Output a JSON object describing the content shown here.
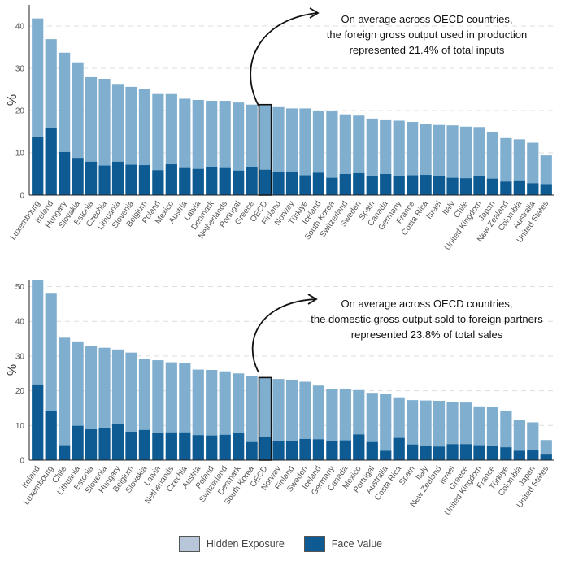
{
  "colors": {
    "hidden": "#7FAECF",
    "face": "#0E5B93",
    "grid": "#dddddd",
    "axis": "#222222"
  },
  "legend": {
    "hidden_label": "Hidden Exposure",
    "face_label": "Face Value",
    "hidden_swatch_color": "#B8C6DA",
    "face_swatch_color": "#0E5B93"
  },
  "chart_data": [
    {
      "type": "bar",
      "ylabel": "%",
      "ylim": [
        0,
        45
      ],
      "yticks": [
        0,
        10,
        20,
        30,
        40
      ],
      "grid": true,
      "highlight": "OECD",
      "annotation": [
        "On average across OECD countries,",
        "the foreign gross output used in production",
        "represented 21.4% of total inputs"
      ],
      "categories": [
        "Luxembourg",
        "Ireland",
        "Hungary",
        "Slovakia",
        "Estonia",
        "Czechia",
        "Lithuania",
        "Slovenia",
        "Belgium",
        "Poland",
        "Mexico",
        "Austria",
        "Latvia",
        "Denmark",
        "Netherlands",
        "Portugal",
        "Greece",
        "OECD",
        "Finland",
        "Norway",
        "Türkiye",
        "Iceland",
        "South Korea",
        "Switzerland",
        "Sweden",
        "Spain",
        "Canada",
        "Germany",
        "France",
        "Costa Rica",
        "Israel",
        "Italy",
        "Chile",
        "United Kingdom",
        "Japan",
        "New Zealand",
        "Colombia",
        "Australia",
        "United States"
      ],
      "series": [
        {
          "name": "Hidden Exposure",
          "values": [
            41.8,
            36.9,
            33.7,
            31.4,
            27.9,
            27.5,
            26.3,
            25.6,
            25.0,
            23.9,
            23.9,
            22.8,
            22.5,
            22.3,
            22.3,
            21.9,
            21.4,
            21.4,
            21.0,
            20.5,
            20.5,
            19.9,
            19.8,
            19.1,
            18.8,
            18.1,
            17.9,
            17.6,
            17.3,
            16.9,
            16.6,
            16.5,
            16.2,
            16.1,
            15.0,
            13.5,
            13.2,
            12.4,
            9.4
          ]
        },
        {
          "name": "Face Value",
          "values": [
            13.8,
            15.9,
            10.2,
            8.8,
            7.9,
            7.0,
            7.9,
            7.2,
            7.1,
            5.9,
            7.3,
            6.4,
            6.2,
            6.7,
            6.4,
            5.8,
            6.7,
            6.0,
            5.4,
            5.5,
            4.7,
            5.3,
            4.1,
            5.0,
            5.2,
            4.6,
            5.0,
            4.6,
            4.7,
            4.8,
            4.6,
            4.1,
            4.0,
            4.6,
            3.9,
            3.2,
            3.3,
            2.8,
            2.6
          ]
        }
      ]
    },
    {
      "type": "bar",
      "ylabel": "%",
      "ylim": [
        0,
        52
      ],
      "yticks": [
        0,
        10,
        20,
        30,
        40,
        50
      ],
      "grid": true,
      "highlight": "OECD",
      "annotation": [
        "On average across OECD countries,",
        "the domestic gross output sold to foreign partners",
        "represented 23.8% of total sales"
      ],
      "categories": [
        "Ireland",
        "Luxembourg",
        "Chile",
        "Lithuania",
        "Estonia",
        "Slovenia",
        "Hungary",
        "Belgium",
        "Slovakia",
        "Latvia",
        "Netherlands",
        "Czechia",
        "Austria",
        "Poland",
        "Switzerland",
        "Denmark",
        "South Korea",
        "OECD",
        "Norway",
        "Finland",
        "Sweden",
        "Iceland",
        "Germany",
        "Canada",
        "Mexico",
        "Portugal",
        "Australia",
        "Costa Rica",
        "Spain",
        "Italy",
        "New Zealand",
        "Israel",
        "Greece",
        "United Kingdom",
        "France",
        "Türkiye",
        "Colombia",
        "Japan",
        "United States"
      ],
      "series": [
        {
          "name": "Hidden Exposure",
          "values": [
            51.8,
            48.2,
            35.3,
            34.0,
            32.8,
            32.4,
            31.9,
            31.0,
            29.1,
            28.8,
            28.2,
            28.1,
            26.1,
            26.0,
            25.6,
            25.0,
            24.2,
            23.8,
            23.4,
            23.2,
            22.6,
            21.5,
            20.6,
            20.5,
            20.2,
            19.4,
            19.2,
            18.1,
            17.3,
            17.2,
            17.1,
            16.8,
            16.6,
            15.5,
            15.3,
            14.3,
            11.6,
            10.9,
            5.8
          ]
        },
        {
          "name": "Face Value",
          "values": [
            21.8,
            14.2,
            4.3,
            9.9,
            8.9,
            9.3,
            10.5,
            8.2,
            8.7,
            7.9,
            8.0,
            8.0,
            7.2,
            7.1,
            7.3,
            7.9,
            5.2,
            6.8,
            5.6,
            5.5,
            6.1,
            6.0,
            5.4,
            5.7,
            7.4,
            5.2,
            2.7,
            6.4,
            4.5,
            4.2,
            3.9,
            4.6,
            4.6,
            4.3,
            4.1,
            3.7,
            2.7,
            2.8,
            1.6
          ]
        }
      ]
    }
  ]
}
